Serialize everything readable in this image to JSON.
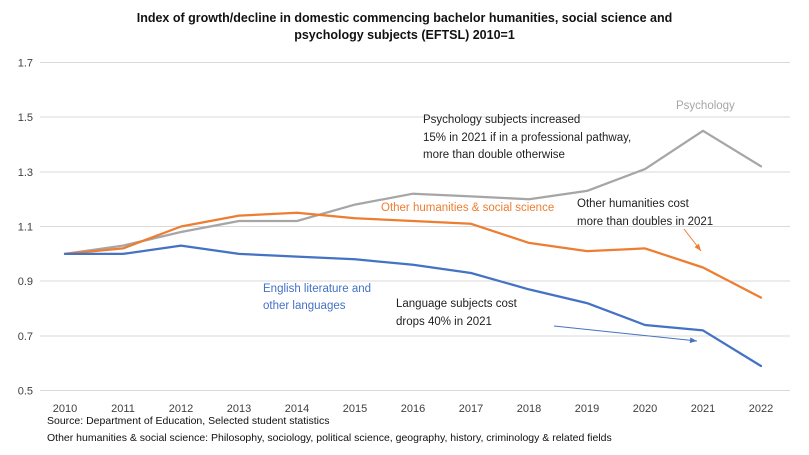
{
  "title": {
    "line1": "Index of growth/decline in domestic commencing bachelor humanities, social science and",
    "line2": "psychology subjects (EFTSL) 2010=1"
  },
  "chart_data": {
    "type": "line",
    "title": "Index of growth/decline in domestic commencing bachelor humanities, social science and psychology subjects (EFTSL) 2010=1",
    "categories": [
      "2010",
      "2011",
      "2012",
      "2013",
      "2014",
      "2015",
      "2016",
      "2017",
      "2018",
      "2019",
      "2020",
      "2021",
      "2022"
    ],
    "series": [
      {
        "name": "Psychology",
        "color": "#A6A6A6",
        "values": [
          1.0,
          1.03,
          1.08,
          1.12,
          1.12,
          1.18,
          1.22,
          1.21,
          1.2,
          1.23,
          1.31,
          1.45,
          1.32
        ]
      },
      {
        "name": "Other humanities & social science",
        "color": "#ED7D31",
        "values": [
          1.0,
          1.02,
          1.1,
          1.14,
          1.15,
          1.13,
          1.12,
          1.11,
          1.04,
          1.01,
          1.02,
          0.95,
          0.84
        ]
      },
      {
        "name": "English literature and other languages",
        "color": "#4472C4",
        "values": [
          1.0,
          1.0,
          1.03,
          1.0,
          0.99,
          0.98,
          0.96,
          0.93,
          0.87,
          0.82,
          0.74,
          0.72,
          0.59
        ]
      }
    ],
    "ylim": [
      0.5,
      1.7
    ],
    "yticks": [
      1.7,
      1.5,
      1.3,
      1.1,
      0.9,
      0.7,
      0.5
    ],
    "grid": true,
    "grid_color": "#D9D9D9",
    "axis_text_color": "#404040",
    "legend": "inline series labels"
  },
  "annotations": {
    "psychology_note": {
      "line1": "Psychology subjects increased",
      "line2": "15% in 2021 if in a professional pathway,",
      "line3": "more than double otherwise"
    },
    "other_humanities_note": {
      "line1": "Other humanities cost",
      "line2": "more than doubles in 2021"
    },
    "language_note": {
      "line1": "Language subjects cost",
      "line2": "drops 40% in 2021"
    }
  },
  "footer": {
    "line1": "Source: Department of Education, Selected student statistics",
    "line2": "Other humanities & social science: Philosophy, sociology, political science, geography, history, criminology & related fields"
  }
}
